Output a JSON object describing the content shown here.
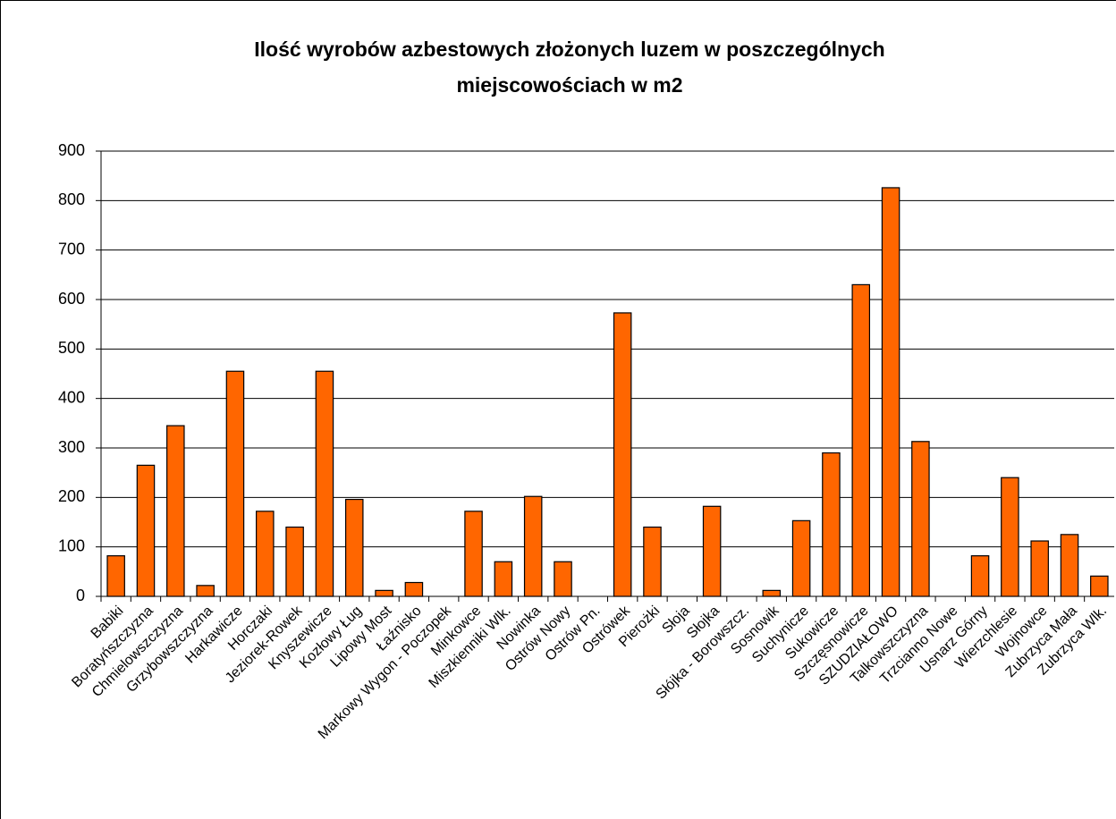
{
  "chart_data": {
    "type": "bar",
    "title": [
      "Ilość wyrobów azbestowych złożonych luzem w poszczególnych",
      "miejscowościach w m2"
    ],
    "categories": [
      "Babiki",
      "Boratyńszczyzna",
      "Chmielowszczyzna",
      "Grzybowszczyzna",
      "Harkawicze",
      "Horczaki",
      "Jeziorek-Rowek",
      "Knyszewicze",
      "Kozłowy Ług",
      "Lipowy Most",
      "Łaźnisko",
      "Markowy Wygon - Poczopek",
      "Minkowce",
      "Miszkienniki Wlk.",
      "Nowinka",
      "Ostrów Nowy",
      "Ostrów Pn.",
      "Ostrówek",
      "Pierożki",
      "Słoja",
      "Słojka",
      "Słójka - Borowszcz.",
      "Sosnowik",
      "Suchynicze",
      "Sukowicze",
      "Szczęsnowicze",
      "SZUDZIAŁOWO",
      "Talkowszczyzna",
      "Trzcianno Nowe",
      "Usnarz Górny",
      "Wierzchlesie",
      "Wojnowce",
      "Zubrzyca Mała",
      "Zubrzyca Wlk."
    ],
    "values": [
      82,
      265,
      345,
      22,
      455,
      172,
      140,
      455,
      196,
      12,
      28,
      0,
      172,
      70,
      202,
      70,
      0,
      573,
      140,
      0,
      182,
      0,
      12,
      153,
      290,
      630,
      826,
      313,
      0,
      82,
      240,
      112,
      125,
      41
    ],
    "color": "#ff6600",
    "ylim": [
      0,
      900
    ],
    "yticks": [
      0,
      100,
      200,
      300,
      400,
      500,
      600,
      700,
      800,
      900
    ],
    "grid": true
  }
}
